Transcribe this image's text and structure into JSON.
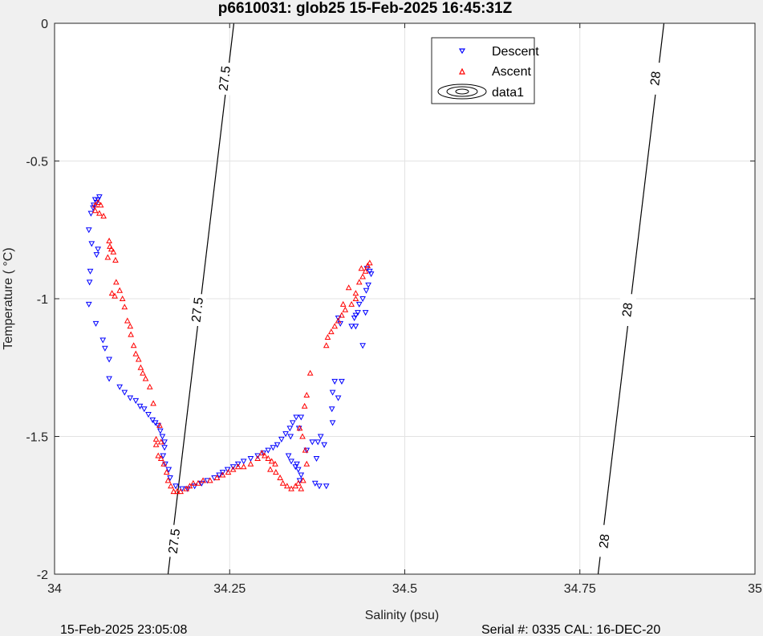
{
  "chart_data": {
    "type": "scatter",
    "title": "p6610031: glob25 15-Feb-2025 16:45:31Z",
    "xlabel": "Salinity (psu)",
    "ylabel": "Temperature (   °C)",
    "xlim": [
      34,
      35
    ],
    "ylim": [
      -2,
      0
    ],
    "xticks": [
      "34",
      "34.25",
      "34.5",
      "34.75",
      "35"
    ],
    "yticks": [
      "0",
      "-0.5",
      "-1",
      "-1.5",
      "-2"
    ],
    "grid": true,
    "legend": {
      "placement": "top-inside",
      "entries": [
        "Descent",
        "Ascent",
        "data1"
      ]
    },
    "series": [
      {
        "name": "Descent",
        "color": "#0000ff",
        "marker": "triangle-down",
        "points": [
          [
            34.064,
            -0.63
          ],
          [
            34.062,
            -0.64
          ],
          [
            34.058,
            -0.64
          ],
          [
            34.06,
            -0.65
          ],
          [
            34.056,
            -0.66
          ],
          [
            34.055,
            -0.67
          ],
          [
            34.052,
            -0.69
          ],
          [
            34.049,
            -0.75
          ],
          [
            34.053,
            -0.8
          ],
          [
            34.062,
            -0.82
          ],
          [
            34.06,
            -0.84
          ],
          [
            34.051,
            -0.9
          ],
          [
            34.05,
            -0.94
          ],
          [
            34.049,
            -1.02
          ],
          [
            34.059,
            -1.09
          ],
          [
            34.069,
            -1.15
          ],
          [
            34.072,
            -1.18
          ],
          [
            34.078,
            -1.22
          ],
          [
            34.078,
            -1.29
          ],
          [
            34.093,
            -1.32
          ],
          [
            34.1,
            -1.34
          ],
          [
            34.108,
            -1.36
          ],
          [
            34.116,
            -1.37
          ],
          [
            34.122,
            -1.39
          ],
          [
            34.128,
            -1.4
          ],
          [
            34.134,
            -1.42
          ],
          [
            34.14,
            -1.44
          ],
          [
            34.144,
            -1.45
          ],
          [
            34.148,
            -1.46
          ],
          [
            34.151,
            -1.48
          ],
          [
            34.154,
            -1.5
          ],
          [
            34.157,
            -1.52
          ],
          [
            34.157,
            -1.54
          ],
          [
            34.155,
            -1.57
          ],
          [
            34.158,
            -1.6
          ],
          [
            34.163,
            -1.62
          ],
          [
            34.165,
            -1.65
          ],
          [
            34.173,
            -1.68
          ],
          [
            34.182,
            -1.69
          ],
          [
            34.19,
            -1.69
          ],
          [
            34.2,
            -1.68
          ],
          [
            34.21,
            -1.67
          ],
          [
            34.218,
            -1.66
          ],
          [
            34.228,
            -1.65
          ],
          [
            34.235,
            -1.64
          ],
          [
            34.24,
            -1.63
          ],
          [
            34.247,
            -1.62
          ],
          [
            34.255,
            -1.61
          ],
          [
            34.262,
            -1.6
          ],
          [
            34.27,
            -1.59
          ],
          [
            34.28,
            -1.58
          ],
          [
            34.29,
            -1.57
          ],
          [
            34.298,
            -1.56
          ],
          [
            34.305,
            -1.55
          ],
          [
            34.312,
            -1.54
          ],
          [
            34.318,
            -1.53
          ],
          [
            34.324,
            -1.51
          ],
          [
            34.33,
            -1.49
          ],
          [
            34.336,
            -1.47
          ],
          [
            34.34,
            -1.45
          ],
          [
            34.345,
            -1.43
          ],
          [
            34.352,
            -1.43
          ],
          [
            34.349,
            -1.47
          ],
          [
            34.337,
            -1.5
          ],
          [
            34.334,
            -1.57
          ],
          [
            34.338,
            -1.59
          ],
          [
            34.344,
            -1.61
          ],
          [
            34.348,
            -1.62
          ],
          [
            34.352,
            -1.64
          ],
          [
            34.35,
            -1.66
          ],
          [
            34.346,
            -1.6
          ],
          [
            34.36,
            -1.55
          ],
          [
            34.368,
            -1.52
          ],
          [
            34.374,
            -1.58
          ],
          [
            34.376,
            -1.52
          ],
          [
            34.38,
            -1.5
          ],
          [
            34.385,
            -1.53
          ],
          [
            34.372,
            -1.67
          ],
          [
            34.378,
            -1.68
          ],
          [
            34.388,
            -1.68
          ],
          [
            34.397,
            -1.45
          ],
          [
            34.396,
            -1.4
          ],
          [
            34.397,
            -1.34
          ],
          [
            34.41,
            -1.3
          ],
          [
            34.405,
            -1.36
          ],
          [
            34.4,
            -1.3
          ],
          [
            34.424,
            -1.1
          ],
          [
            34.428,
            -1.07
          ],
          [
            34.43,
            -1.06
          ],
          [
            34.433,
            -1.05
          ],
          [
            34.43,
            -1.1
          ],
          [
            34.44,
            -1.0
          ],
          [
            34.435,
            -1.02
          ],
          [
            34.445,
            -0.97
          ],
          [
            34.448,
            -0.95
          ],
          [
            34.452,
            -0.91
          ],
          [
            34.45,
            -0.9
          ],
          [
            34.446,
            -0.89
          ],
          [
            34.44,
            -1.17
          ],
          [
            34.444,
            -1.05
          ],
          [
            34.408,
            -1.09
          ],
          [
            34.405,
            -1.07
          ]
        ]
      },
      {
        "name": "Ascent",
        "color": "#ff0000",
        "marker": "triangle-up",
        "points": [
          [
            34.062,
            -0.65
          ],
          [
            34.058,
            -0.66
          ],
          [
            34.066,
            -0.66
          ],
          [
            34.058,
            -0.68
          ],
          [
            34.064,
            -0.69
          ],
          [
            34.07,
            -0.7
          ],
          [
            34.078,
            -0.79
          ],
          [
            34.079,
            -0.81
          ],
          [
            34.081,
            -0.82
          ],
          [
            34.084,
            -0.83
          ],
          [
            34.076,
            -0.85
          ],
          [
            34.087,
            -0.86
          ],
          [
            34.082,
            -0.98
          ],
          [
            34.086,
            -0.99
          ],
          [
            34.088,
            -0.94
          ],
          [
            34.093,
            -0.97
          ],
          [
            34.097,
            -1.0
          ],
          [
            34.1,
            -1.03
          ],
          [
            34.104,
            -1.08
          ],
          [
            34.108,
            -1.1
          ],
          [
            34.109,
            -1.13
          ],
          [
            34.113,
            -1.17
          ],
          [
            34.116,
            -1.2
          ],
          [
            34.12,
            -1.22
          ],
          [
            34.123,
            -1.25
          ],
          [
            34.126,
            -1.27
          ],
          [
            34.13,
            -1.29
          ],
          [
            34.136,
            -1.32
          ],
          [
            34.141,
            -1.38
          ],
          [
            34.15,
            -1.46
          ],
          [
            34.152,
            -1.52
          ],
          [
            34.145,
            -1.51
          ],
          [
            34.145,
            -1.53
          ],
          [
            34.148,
            -1.57
          ],
          [
            34.152,
            -1.58
          ],
          [
            34.156,
            -1.6
          ],
          [
            34.16,
            -1.63
          ],
          [
            34.162,
            -1.66
          ],
          [
            34.166,
            -1.68
          ],
          [
            34.17,
            -1.7
          ],
          [
            34.175,
            -1.7
          ],
          [
            34.18,
            -1.7
          ],
          [
            34.188,
            -1.69
          ],
          [
            34.193,
            -1.68
          ],
          [
            34.198,
            -1.67
          ],
          [
            34.205,
            -1.67
          ],
          [
            34.212,
            -1.66
          ],
          [
            34.222,
            -1.66
          ],
          [
            34.232,
            -1.65
          ],
          [
            34.24,
            -1.64
          ],
          [
            34.248,
            -1.63
          ],
          [
            34.255,
            -1.62
          ],
          [
            34.262,
            -1.61
          ],
          [
            34.27,
            -1.61
          ],
          [
            34.28,
            -1.6
          ],
          [
            34.29,
            -1.58
          ],
          [
            34.296,
            -1.56
          ],
          [
            34.3,
            -1.57
          ],
          [
            34.305,
            -1.58
          ],
          [
            34.31,
            -1.59
          ],
          [
            34.316,
            -1.63
          ],
          [
            34.322,
            -1.65
          ],
          [
            34.326,
            -1.67
          ],
          [
            34.332,
            -1.68
          ],
          [
            34.338,
            -1.69
          ],
          [
            34.344,
            -1.68
          ],
          [
            34.348,
            -1.67
          ],
          [
            34.352,
            -1.69
          ],
          [
            34.315,
            -1.6
          ],
          [
            34.308,
            -1.62
          ],
          [
            34.355,
            -1.66
          ],
          [
            34.36,
            -1.6
          ],
          [
            34.358,
            -1.55
          ],
          [
            34.354,
            -1.5
          ],
          [
            34.35,
            -1.47
          ],
          [
            34.357,
            -1.39
          ],
          [
            34.36,
            -1.35
          ],
          [
            34.365,
            -1.27
          ],
          [
            34.388,
            -1.17
          ],
          [
            34.39,
            -1.14
          ],
          [
            34.395,
            -1.12
          ],
          [
            34.4,
            -1.1
          ],
          [
            34.405,
            -1.08
          ],
          [
            34.41,
            -1.06
          ],
          [
            34.412,
            -1.02
          ],
          [
            34.415,
            -1.04
          ],
          [
            34.424,
            -1.02
          ],
          [
            34.43,
            -0.98
          ],
          [
            34.435,
            -0.94
          ],
          [
            34.44,
            -0.92
          ],
          [
            34.444,
            -0.9
          ],
          [
            34.447,
            -0.88
          ],
          [
            34.45,
            -0.87
          ],
          [
            34.438,
            -0.89
          ],
          [
            34.42,
            -0.96
          ],
          [
            34.43,
            -1.0
          ]
        ]
      }
    ],
    "contours": [
      {
        "value": "27.5",
        "color": "#000000",
        "line": [
          [
            34.162,
            -2.0
          ],
          [
            34.256,
            0.0
          ]
        ]
      },
      {
        "value": "28",
        "color": "#000000",
        "line": [
          [
            34.776,
            -2.0
          ],
          [
            34.87,
            0.0
          ]
        ]
      }
    ],
    "contour_labels": [
      {
        "text": "27.5",
        "x": 34.242,
        "y": -0.2
      },
      {
        "text": "27.5",
        "x": 34.203,
        "y": -1.04
      },
      {
        "text": "27.5",
        "x": 34.17,
        "y": -1.88
      },
      {
        "text": "28",
        "x": 34.857,
        "y": -0.2
      },
      {
        "text": "28",
        "x": 34.817,
        "y": -1.04
      },
      {
        "text": "28",
        "x": 34.784,
        "y": -1.88
      }
    ]
  },
  "footer": {
    "left": "15-Feb-2025 23:05:08",
    "right": "Serial #: 0335  CAL: 16-DEC-20"
  }
}
